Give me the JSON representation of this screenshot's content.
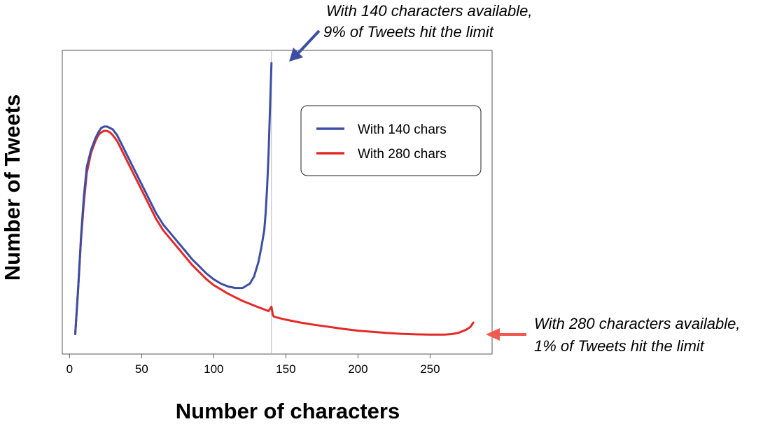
{
  "chart_data": {
    "type": "line",
    "title": "",
    "xlabel": "Number of characters",
    "ylabel": "Number of Tweets",
    "xlim": [
      -5,
      293
    ],
    "ylim": [
      0,
      100
    ],
    "xticks": [
      0,
      50,
      100,
      150,
      200,
      250
    ],
    "grid": false,
    "legend_position": "top-right",
    "vertical_line_x": 140,
    "series": [
      {
        "name": "With 140 chars",
        "color": "#3b4ea3",
        "x": [
          4,
          6,
          8,
          10,
          12,
          15,
          18,
          20,
          22,
          24,
          26,
          28,
          30,
          33,
          36,
          40,
          45,
          50,
          55,
          60,
          65,
          70,
          75,
          80,
          85,
          90,
          95,
          100,
          105,
          110,
          115,
          120,
          125,
          128,
          131,
          133,
          135,
          136,
          137,
          138,
          139,
          140
        ],
        "values": [
          4,
          20,
          38,
          52,
          62,
          68,
          72,
          74,
          75.5,
          76,
          76,
          75.5,
          75,
          73,
          70,
          66,
          61,
          56,
          51,
          46,
          42,
          39,
          36,
          33,
          30,
          27.5,
          25,
          23,
          21.5,
          20.5,
          20,
          20,
          21.5,
          24,
          29,
          34,
          40,
          46,
          55,
          66,
          82,
          98
        ]
      },
      {
        "name": "With 280 chars",
        "color": "#e42a28",
        "x": [
          4,
          6,
          8,
          10,
          12,
          15,
          18,
          20,
          22,
          24,
          26,
          28,
          30,
          33,
          36,
          40,
          45,
          50,
          55,
          60,
          65,
          70,
          75,
          80,
          85,
          90,
          95,
          100,
          110,
          120,
          130,
          138,
          140,
          141,
          142,
          150,
          160,
          170,
          180,
          190,
          200,
          210,
          220,
          230,
          240,
          250,
          260,
          265,
          270,
          275,
          278,
          280
        ],
        "values": [
          4,
          20,
          37,
          50,
          60,
          67,
          71,
          73,
          74,
          74.5,
          74.5,
          74,
          73,
          71,
          68,
          64,
          59,
          54,
          49,
          44,
          40,
          37,
          34,
          31,
          28,
          25.5,
          23,
          21,
          18,
          15.5,
          13.5,
          12,
          13.5,
          10.5,
          10,
          9,
          8,
          7.2,
          6.5,
          5.8,
          5.2,
          4.8,
          4.4,
          4.1,
          3.9,
          3.8,
          3.8,
          4,
          4.5,
          5.5,
          6.5,
          8
        ]
      }
    ],
    "annotations": [
      {
        "target": "With 140 chars",
        "color": "#3b4ea3",
        "line1": "With 140 characters available,",
        "line2": "9% of Tweets hit the limit"
      },
      {
        "target": "With 280 chars",
        "color": "#ef5a50",
        "line1": "With 280 characters available,",
        "line2": "1% of Tweets hit the limit"
      }
    ]
  }
}
